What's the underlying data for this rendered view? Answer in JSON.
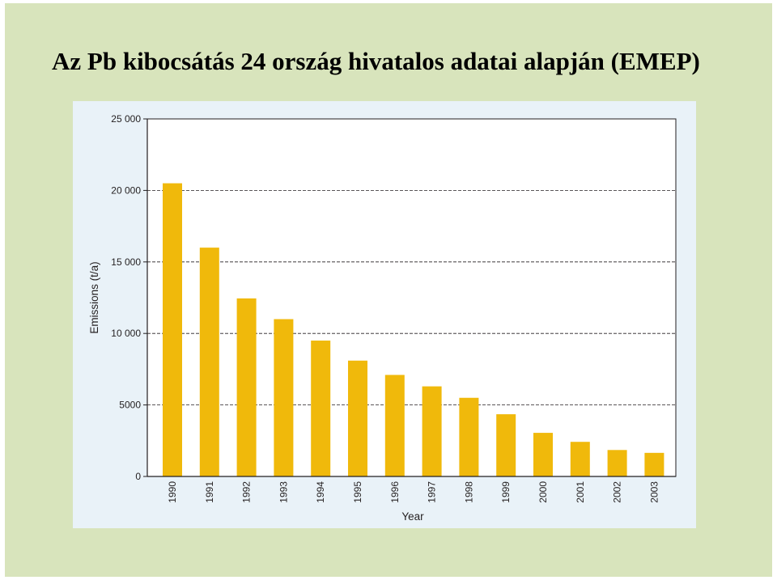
{
  "slide": {
    "title": "Az Pb kibocsátás 24 ország hivatalos adatai alapján (EMEP)",
    "background_color": "#d8e4bc"
  },
  "chart_data": {
    "type": "bar",
    "title": "",
    "xlabel": "Year",
    "ylabel": "Emissions (t/a)",
    "categories": [
      "1990",
      "1991",
      "1992",
      "1993",
      "1994",
      "1995",
      "1996",
      "1997",
      "1998",
      "1999",
      "2000",
      "2001",
      "2002",
      "2003"
    ],
    "values": [
      20500,
      16000,
      12450,
      11000,
      9500,
      8100,
      7100,
      6300,
      5500,
      4350,
      3050,
      2420,
      1850,
      1650
    ],
    "ylim": [
      0,
      25000
    ],
    "yticks": [
      0,
      5000,
      10000,
      15000,
      20000,
      25000
    ],
    "ytick_labels": [
      "0",
      "5000",
      "10 000",
      "15 000",
      "20 000",
      "25 000"
    ],
    "grid": "horizontal dashed",
    "legend": "none",
    "bar_color": "#f0b90b",
    "panel_color": "#e9f2f8",
    "plot_color": "#ffffff"
  }
}
